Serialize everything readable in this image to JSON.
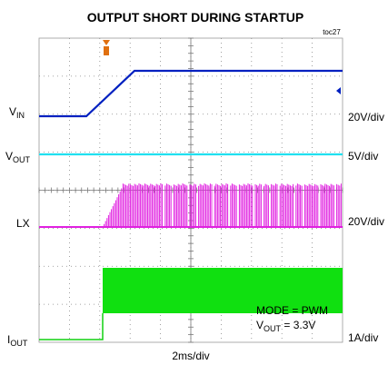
{
  "title": "OUTPUT SHORT DURING STARTUP",
  "figure_id": "toc27",
  "labels": {
    "vin": {
      "main": "V",
      "sub": "IN"
    },
    "vin_scale": "20V/div",
    "vout": {
      "main": "V",
      "sub": "OUT"
    },
    "vout_scale": "5V/div",
    "lx": "LX",
    "lx_scale": "20V/div",
    "iout": {
      "main": "I",
      "sub": "OUT"
    },
    "iout_scale": "1A/div",
    "time_scale": "2ms/div"
  },
  "annotations": {
    "mode": "MODE = PWM",
    "vout_set": {
      "main": "V",
      "sub": "OUT",
      "rest": " = 3.3V"
    }
  }
}
